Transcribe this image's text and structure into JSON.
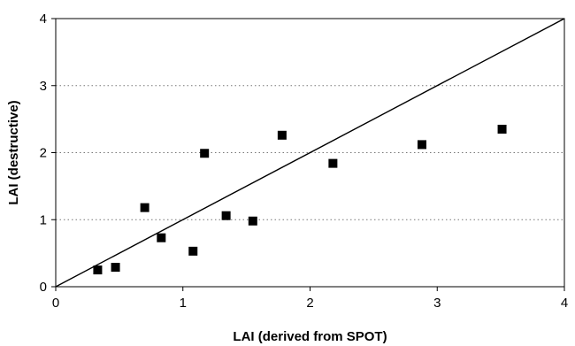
{
  "chart_data": {
    "type": "scatter",
    "title": "",
    "xlabel": "LAI (derived from SPOT)",
    "ylabel": "LAI (destructive)",
    "xlim": [
      0,
      4
    ],
    "ylim": [
      0,
      4
    ],
    "x_ticks": [
      "0",
      "1",
      "2",
      "3",
      "4"
    ],
    "y_ticks": [
      "0",
      "1",
      "2",
      "3",
      "4"
    ],
    "grid": "horizontal dotted",
    "legend": "none",
    "marker_color": "#000000",
    "series": [
      {
        "points": [
          {
            "x": 0.33,
            "y": 0.25
          },
          {
            "x": 0.47,
            "y": 0.29
          },
          {
            "x": 0.7,
            "y": 1.18
          },
          {
            "x": 0.83,
            "y": 0.73
          },
          {
            "x": 1.08,
            "y": 0.53
          },
          {
            "x": 1.17,
            "y": 1.99
          },
          {
            "x": 1.34,
            "y": 1.06
          },
          {
            "x": 1.55,
            "y": 0.98
          },
          {
            "x": 1.78,
            "y": 2.26
          },
          {
            "x": 2.18,
            "y": 1.84
          },
          {
            "x": 2.88,
            "y": 2.12
          },
          {
            "x": 3.51,
            "y": 2.35
          }
        ]
      }
    ],
    "reference_line": {
      "from": [
        0,
        0
      ],
      "to": [
        4,
        4
      ],
      "label": ""
    }
  }
}
